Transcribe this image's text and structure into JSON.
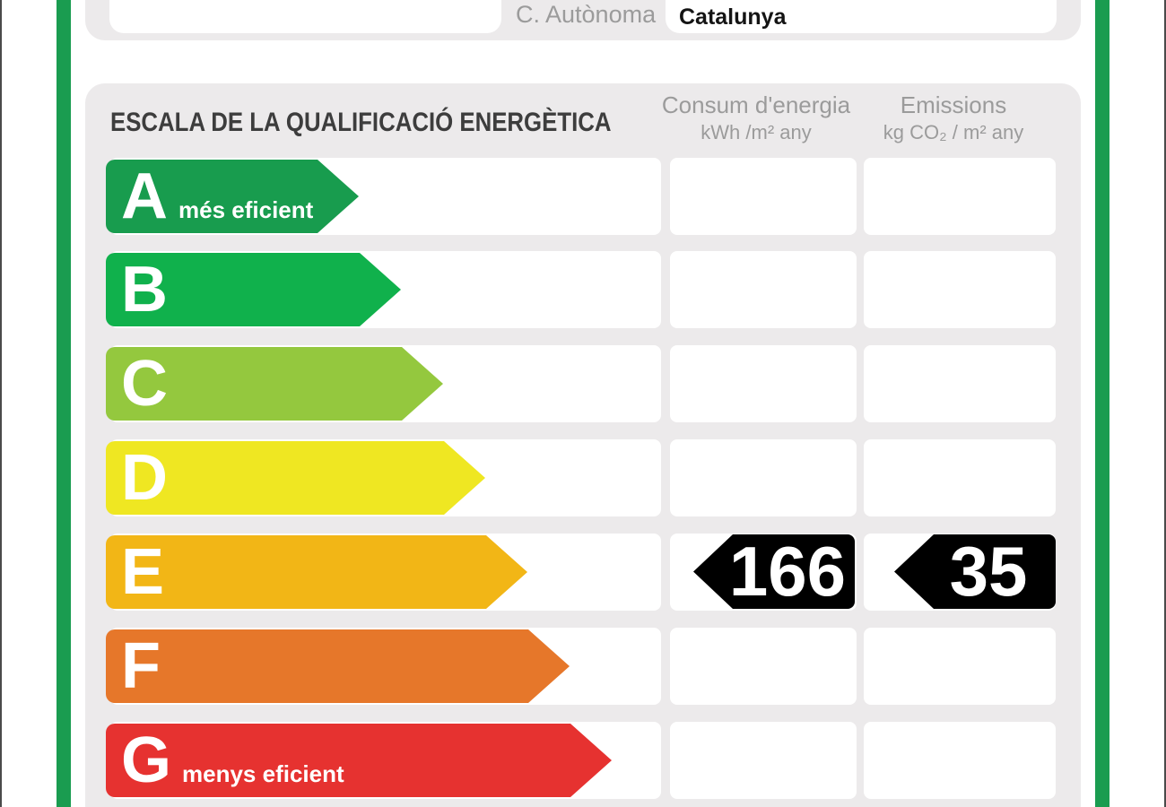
{
  "colors": {
    "frame_green": "#1a9c50",
    "panel_gray": "#eceaeb",
    "value_black": "#000000",
    "label_gray": "#9b9b9b",
    "title_dark": "#3d3d3d"
  },
  "header_form": {
    "empty_field_value": "",
    "region_label": "C. Autònoma",
    "region_value": "Catalunya"
  },
  "scale": {
    "title": "ESCALA DE LA QUALIFICACIÓ ENERGÈTICA",
    "col_consum": {
      "title": "Consum d'energia",
      "unit": "kWh /m² any"
    },
    "col_emissions": {
      "title": "Emissions",
      "unit": "kg CO₂ / m² any"
    },
    "rows": [
      {
        "letter": "A",
        "suffix": "més eficient",
        "color": "#189c4e",
        "arrow_end": 400,
        "consum": "",
        "emissions": ""
      },
      {
        "letter": "B",
        "suffix": "",
        "color": "#10b14c",
        "arrow_end": 447,
        "consum": "",
        "emissions": ""
      },
      {
        "letter": "C",
        "suffix": "",
        "color": "#94c83e",
        "arrow_end": 494,
        "consum": "",
        "emissions": ""
      },
      {
        "letter": "D",
        "suffix": "",
        "color": "#efe722",
        "arrow_end": 541,
        "consum": "",
        "emissions": ""
      },
      {
        "letter": "E",
        "suffix": "",
        "color": "#f2b616",
        "arrow_end": 588,
        "consum": "166",
        "emissions": "35"
      },
      {
        "letter": "F",
        "suffix": "",
        "color": "#e6772a",
        "arrow_end": 635,
        "consum": "",
        "emissions": ""
      },
      {
        "letter": "G",
        "suffix": "menys eficient",
        "color": "#e63230",
        "arrow_end": 682,
        "consum": "",
        "emissions": ""
      }
    ]
  },
  "chart_data": {
    "type": "bar",
    "title": "ESCALA DE LA QUALIFICACIÓ ENERGÈTICA",
    "orientation": "horizontal",
    "categories": [
      "A",
      "B",
      "C",
      "D",
      "E",
      "F",
      "G"
    ],
    "category_labels": [
      "A més eficient",
      "B",
      "C",
      "D",
      "E",
      "F",
      "G menys eficient"
    ],
    "bar_colors": [
      "#189c4e",
      "#10b14c",
      "#94c83e",
      "#efe722",
      "#f2b616",
      "#e6772a",
      "#e63230"
    ],
    "bar_relative_lengths": [
      282,
      329,
      376,
      423,
      470,
      517,
      564
    ],
    "rated_category": "E",
    "series": [
      {
        "name": "Consum d'energia (kWh /m² any)",
        "values": [
          null,
          null,
          null,
          null,
          166,
          null,
          null
        ]
      },
      {
        "name": "Emissions (kg CO₂ / m² any)",
        "values": [
          null,
          null,
          null,
          null,
          35,
          null,
          null
        ]
      }
    ],
    "region": "Catalunya",
    "legend_position": "none",
    "grid": false
  }
}
